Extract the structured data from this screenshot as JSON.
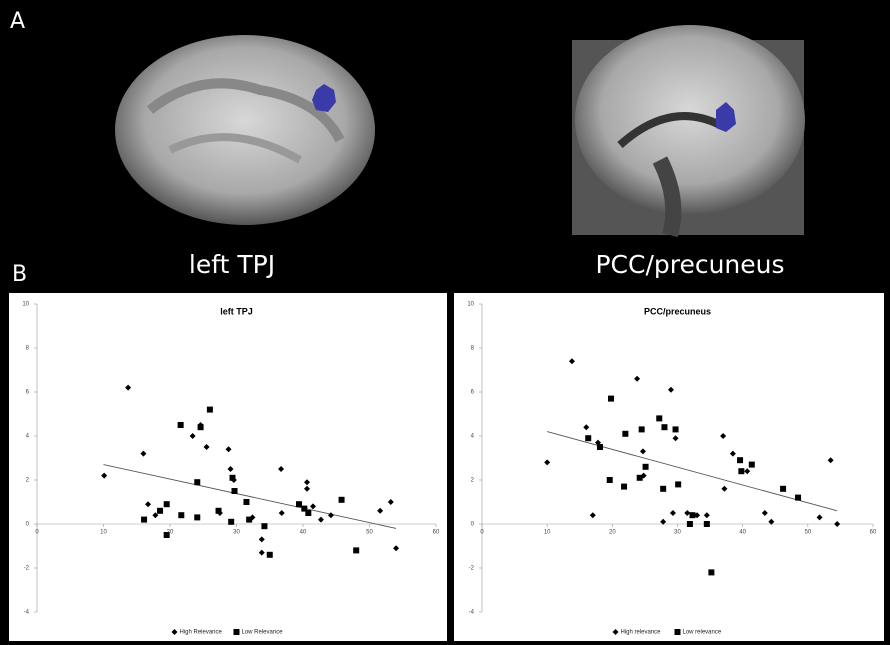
{
  "figure": {
    "panel_a_label": "A",
    "panel_b_label": "B",
    "captions": [
      "left TPJ",
      "PCC/precuneus"
    ]
  },
  "chart_data": [
    {
      "type": "scatter",
      "title": "left TPJ",
      "legend": "bottom",
      "xlim": [
        0,
        60
      ],
      "xticks": [
        0,
        10,
        20,
        30,
        40,
        50,
        60
      ],
      "ylim": [
        -4,
        10
      ],
      "yticks": [
        -4,
        -2,
        0,
        2,
        4,
        6,
        8,
        10
      ],
      "series": [
        {
          "name": "High Relevance",
          "color": "#000000",
          "marker": "diamond",
          "x": [
            10.1,
            13.7,
            16,
            16.7,
            17.8,
            23.4,
            24.6,
            25.5,
            27.5,
            28.8,
            29.1,
            29.6,
            32.4,
            33.8,
            33.8,
            36.7,
            36.8,
            40.6,
            40.6,
            41.5,
            42.7,
            44.2,
            51.6,
            53.2,
            54
          ],
          "values": [
            2.2,
            6.2,
            3.2,
            0.9,
            0.4,
            4.0,
            4.5,
            3.5,
            0.5,
            3.4,
            2.5,
            2.0,
            0.3,
            -0.7,
            -1.3,
            2.5,
            0.5,
            1.9,
            1.6,
            0.8,
            0.2,
            0.4,
            0.6,
            1.0,
            -1.1
          ]
        },
        {
          "name": "Low Relevance",
          "color": "#000000",
          "marker": "square",
          "x": [
            16.1,
            18.5,
            19.5,
            19.5,
            21.6,
            21.7,
            24.1,
            24.1,
            24.6,
            26,
            27.3,
            29.4,
            29.7,
            29.2,
            31.5,
            31.9,
            34.2,
            35,
            39.4,
            40.2,
            40.8,
            45.8,
            48
          ],
          "values": [
            0.2,
            0.6,
            -0.5,
            0.9,
            4.5,
            0.4,
            1.9,
            0.3,
            4.4,
            5.2,
            0.6,
            2.1,
            1.5,
            0.1,
            1.0,
            0.2,
            -0.1,
            -1.4,
            0.9,
            0.7,
            0.5,
            1.1,
            -1.2
          ]
        }
      ],
      "trendline": {
        "x": [
          10,
          54
        ],
        "values": [
          2.7,
          -0.2
        ]
      }
    },
    {
      "type": "scatter",
      "title": "PCC/precuneus",
      "legend": "bottom",
      "xlim": [
        0,
        60
      ],
      "xticks": [
        0,
        10,
        20,
        30,
        40,
        50,
        60
      ],
      "ylim": [
        -4,
        10
      ],
      "yticks": [
        -4,
        -2,
        0,
        2,
        4,
        6,
        8,
        10
      ],
      "series": [
        {
          "name": "High relevance",
          "color": "#000000",
          "marker": "diamond",
          "x": [
            10,
            13.8,
            16,
            17,
            17.8,
            23.8,
            24.7,
            24.8,
            29,
            29.7,
            29.3,
            27.8,
            31.5,
            33,
            34.5,
            37,
            37.2,
            38.5,
            40.7,
            43.4,
            44.4,
            51.8,
            53.5,
            54.5
          ],
          "values": [
            2.8,
            7.4,
            4.4,
            0.4,
            3.7,
            6.6,
            3.3,
            2.2,
            6.1,
            3.9,
            0.5,
            0.1,
            0.5,
            0.4,
            0.4,
            4.0,
            1.6,
            3.2,
            2.4,
            0.5,
            0.1,
            0.3,
            2.9,
            0
          ]
        },
        {
          "name": "Low relevance",
          "color": "#000000",
          "marker": "square",
          "x": [
            16.3,
            18.1,
            19.8,
            19.6,
            22,
            21.8,
            24.5,
            25.1,
            24.2,
            27.2,
            27.8,
            28,
            29.7,
            30.1,
            32.3,
            31.9,
            34.5,
            35.2,
            39.6,
            39.8,
            41.4,
            46.2,
            48.5
          ],
          "values": [
            3.9,
            3.5,
            5.7,
            2.0,
            4.1,
            1.7,
            4.3,
            2.6,
            2.1,
            4.8,
            1.6,
            4.4,
            4.3,
            1.8,
            0.4,
            0,
            0,
            -2.2,
            2.9,
            2.4,
            2.7,
            1.6,
            1.2
          ]
        }
      ],
      "trendline": {
        "x": [
          10,
          54.5
        ],
        "values": [
          4.2,
          0.6
        ]
      }
    }
  ]
}
